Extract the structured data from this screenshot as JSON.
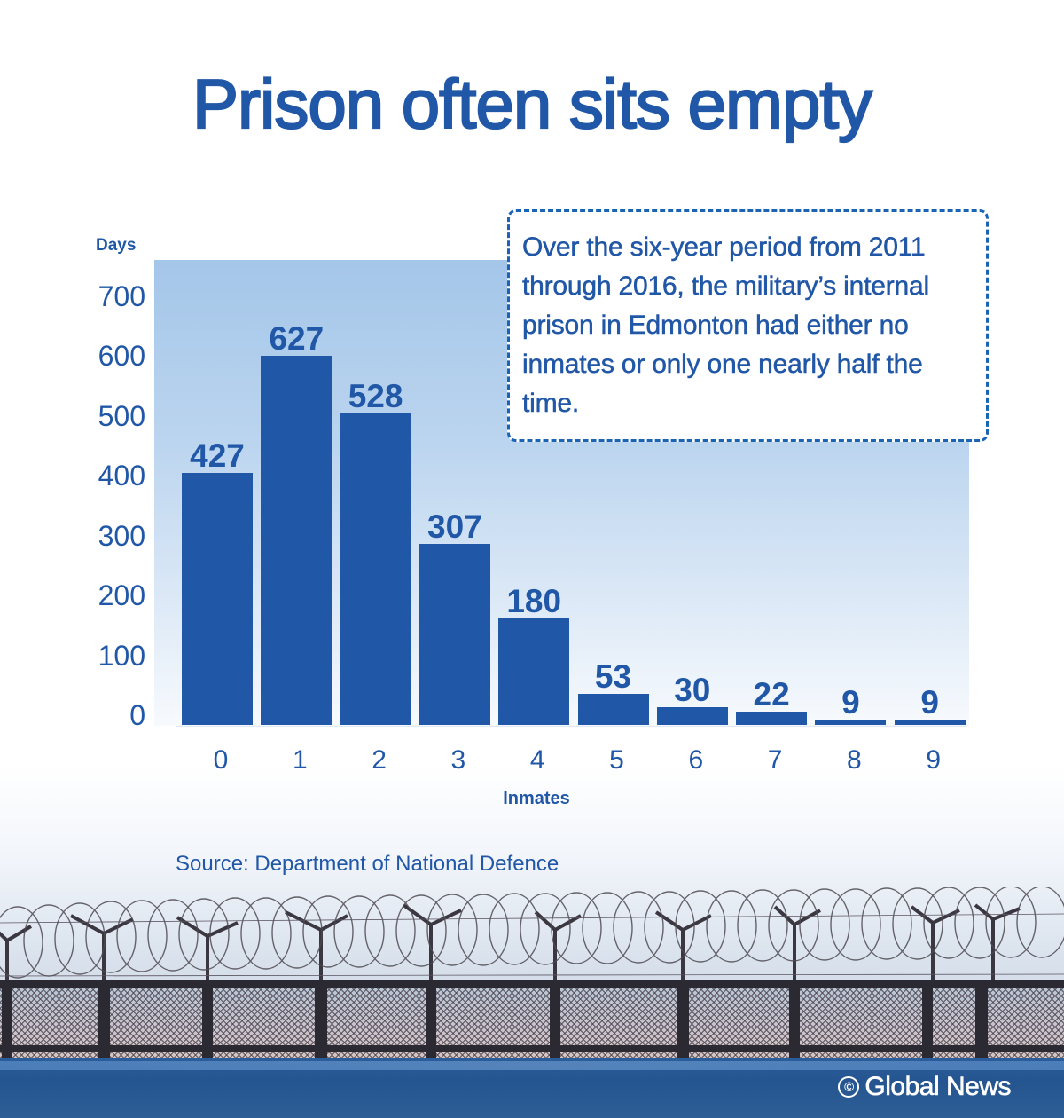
{
  "title": "Prison often sits empty",
  "colors": {
    "primary": "#2157a7",
    "callout_border": "#1a63b5",
    "chart_bg_top": "#a4c6e9",
    "footer": "#255590"
  },
  "callout": {
    "text": "Over the six-year period from 2011 through 2016, the military’s internal prison in Edmonton had either no inmates or only one nearly half the time."
  },
  "source": "Source: Department of National Defence",
  "brand": {
    "copyright_symbol": "©",
    "name": "Global News"
  },
  "chart_data": {
    "type": "bar",
    "title": "Prison often sits empty",
    "xlabel": "Inmates",
    "ylabel": "Days",
    "categories": [
      "0",
      "1",
      "2",
      "3",
      "4",
      "5",
      "6",
      "7",
      "8",
      "9"
    ],
    "values": [
      427,
      627,
      528,
      307,
      180,
      53,
      30,
      22,
      9,
      9
    ],
    "yticks": [
      "0",
      "100",
      "200",
      "300",
      "400",
      "500",
      "600",
      "700"
    ],
    "ylim": [
      0,
      750
    ],
    "grid": false,
    "legend": null,
    "data_labels": true,
    "annotation": "Over the six-year period from 2011 through 2016, the military’s internal prison in Edmonton had either no inmates or only one nearly half the time."
  }
}
